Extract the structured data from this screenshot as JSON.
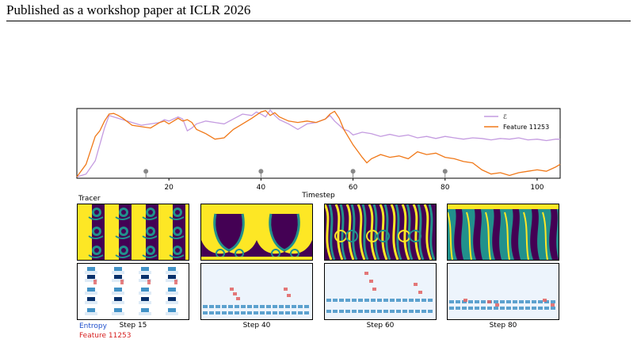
{
  "header": {
    "text": "Published as a workshop paper at ICLR 2026"
  },
  "figure": {
    "row_label_top": "Tracer",
    "legend_bottom": [
      {
        "label": "Entropy",
        "color": "#1f4fcc"
      },
      {
        "label": "Feature 11253",
        "color": "#d62020"
      }
    ],
    "steps": [
      "Step 15",
      "Step 40",
      "Step 60",
      "Step 80"
    ],
    "tracer_colors": {
      "background": "#fde725",
      "dark": "#440154",
      "mid": "#21918c",
      "teal": "#2a788e"
    },
    "heat_colors": {
      "blue": "#08306b",
      "mid_blue": "#4292c6",
      "light_blue": "#deebf7",
      "red": "#e06060"
    }
  },
  "chart_data": {
    "type": "line",
    "xlabel": "Timestep",
    "ylabel": "",
    "xlim": [
      0,
      105
    ],
    "ylim": [
      0,
      1
    ],
    "xticks": [
      20,
      40,
      60,
      80,
      100
    ],
    "markers_x": [
      15,
      40,
      60,
      80
    ],
    "legend_position": "top-right",
    "series": [
      {
        "name": "ℰ",
        "color": "#c49be0",
        "x": [
          0,
          2,
          4,
          6,
          7,
          8,
          10,
          12,
          14,
          16,
          18,
          19,
          20,
          22,
          23,
          24,
          25,
          26,
          28,
          30,
          32,
          34,
          36,
          38,
          39,
          40,
          41,
          42,
          43,
          44,
          46,
          48,
          50,
          52,
          54,
          55,
          56,
          58,
          59,
          60,
          62,
          64,
          66,
          68,
          70,
          72,
          74,
          76,
          78,
          80,
          82,
          84,
          86,
          88,
          90,
          92,
          94,
          96,
          98,
          100,
          102,
          104,
          105
        ],
        "y": [
          0.02,
          0.06,
          0.25,
          0.72,
          0.9,
          0.88,
          0.84,
          0.8,
          0.76,
          0.78,
          0.8,
          0.84,
          0.82,
          0.88,
          0.85,
          0.68,
          0.72,
          0.78,
          0.82,
          0.8,
          0.78,
          0.85,
          0.92,
          0.9,
          0.95,
          0.92,
          0.88,
          0.98,
          0.9,
          0.84,
          0.78,
          0.7,
          0.78,
          0.8,
          0.85,
          0.9,
          0.82,
          0.7,
          0.68,
          0.62,
          0.66,
          0.64,
          0.6,
          0.63,
          0.6,
          0.62,
          0.58,
          0.6,
          0.57,
          0.6,
          0.58,
          0.56,
          0.58,
          0.57,
          0.55,
          0.57,
          0.56,
          0.58,
          0.55,
          0.56,
          0.54,
          0.56,
          0.56
        ]
      },
      {
        "name": "Feature 11253",
        "color": "#f07818",
        "x": [
          0,
          2,
          4,
          5,
          6,
          7,
          8,
          9,
          10,
          12,
          14,
          16,
          18,
          19,
          20,
          22,
          23,
          24,
          25,
          26,
          28,
          30,
          32,
          34,
          36,
          38,
          40,
          41,
          42,
          43,
          44,
          46,
          48,
          50,
          52,
          54,
          55,
          56,
          57,
          58,
          60,
          62,
          63,
          64,
          66,
          68,
          70,
          72,
          74,
          76,
          78,
          80,
          82,
          84,
          86,
          88,
          90,
          92,
          94,
          96,
          98,
          100,
          102,
          104,
          105
        ],
        "y": [
          0.02,
          0.2,
          0.6,
          0.68,
          0.82,
          0.92,
          0.93,
          0.9,
          0.86,
          0.76,
          0.74,
          0.72,
          0.8,
          0.82,
          0.78,
          0.86,
          0.82,
          0.84,
          0.8,
          0.7,
          0.64,
          0.56,
          0.58,
          0.7,
          0.78,
          0.86,
          0.95,
          0.97,
          0.9,
          0.94,
          0.88,
          0.82,
          0.8,
          0.82,
          0.8,
          0.85,
          0.92,
          0.96,
          0.86,
          0.7,
          0.48,
          0.3,
          0.22,
          0.28,
          0.34,
          0.3,
          0.32,
          0.28,
          0.38,
          0.34,
          0.36,
          0.3,
          0.28,
          0.24,
          0.22,
          0.12,
          0.06,
          0.08,
          0.04,
          0.08,
          0.1,
          0.12,
          0.1,
          0.16,
          0.2
        ]
      }
    ]
  }
}
